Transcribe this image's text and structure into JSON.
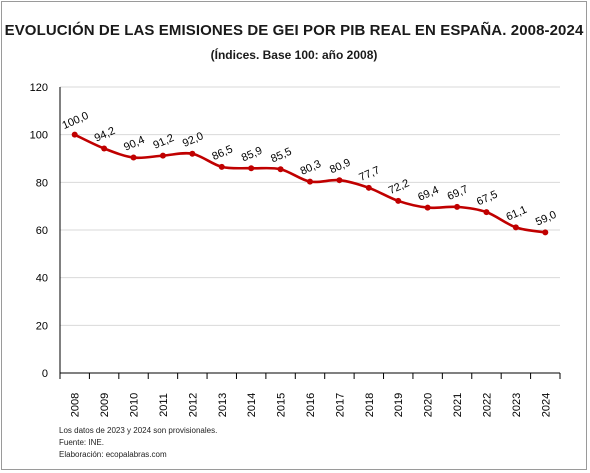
{
  "title": "EVOLUCIÓN DE LAS EMISIONES DE GEI POR PIB REAL EN ESPAÑA. 2008-2024",
  "subtitle": "(Índices. Base 100: año 2008)",
  "notes": [
    "Los datos de 2023 y 2024 son provisionales.",
    "Fuente: INE.",
    "Elaboración: ecopalabras.com"
  ],
  "colors": {
    "line": "#c00000",
    "grid": "#d9d9d9",
    "axis": "#000000"
  },
  "chart_data": {
    "type": "line",
    "x": [
      "2008",
      "2009",
      "2010",
      "2011",
      "2012",
      "2013",
      "2014",
      "2015",
      "2016",
      "2017",
      "2018",
      "2019",
      "2020",
      "2021",
      "2022",
      "2023",
      "2024"
    ],
    "values": [
      100.0,
      94.2,
      90.4,
      91.2,
      92.0,
      86.5,
      85.9,
      85.5,
      80.3,
      80.9,
      77.7,
      72.2,
      69.4,
      69.7,
      67.5,
      61.1,
      59.0
    ],
    "data_labels": [
      "100,0",
      "94,2",
      "90,4",
      "91,2",
      "92,0",
      "86,5",
      "85,9",
      "85,5",
      "80,3",
      "80,9",
      "77,7",
      "72,2",
      "69,4",
      "69,7",
      "67,5",
      "61,1",
      "59,0"
    ],
    "y_ticks": [
      "0",
      "20",
      "40",
      "60",
      "80",
      "100",
      "120"
    ],
    "ylim": [
      0,
      120
    ],
    "grid": true,
    "legend": "none",
    "xlabel": "",
    "ylabel": ""
  }
}
